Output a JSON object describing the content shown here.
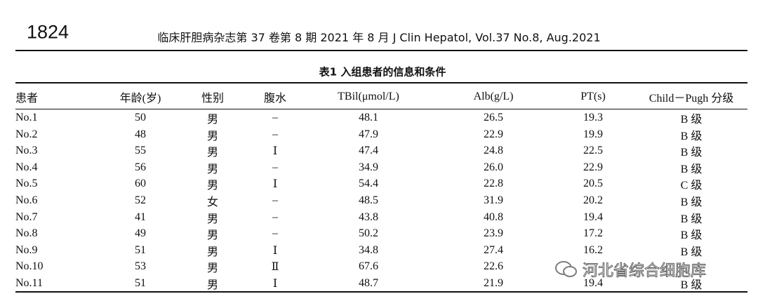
{
  "header": {
    "page_number": "1824",
    "journal": "临床肝胆病杂志第 37 卷第 8 期 2021 年 8 月   J Clin Hepatol, Vol.37 No.8, Aug.2021"
  },
  "table": {
    "caption": "表1   入组患者的信息和条件",
    "columns": [
      "患者",
      "年龄(岁)",
      "性别",
      "腹水",
      "TBil(μmol/L)",
      "Alb(g/L)",
      "PT(s)",
      "Child－Pugh 分级"
    ],
    "rows": [
      [
        "No.1",
        "50",
        "男",
        "–",
        "48.1",
        "26.5",
        "19.3",
        "B 级"
      ],
      [
        "No.2",
        "48",
        "男",
        "–",
        "47.9",
        "22.9",
        "19.9",
        "B 级"
      ],
      [
        "No.3",
        "55",
        "男",
        "Ⅰ",
        "47.4",
        "24.8",
        "22.5",
        "B 级"
      ],
      [
        "No.4",
        "56",
        "男",
        "–",
        "34.9",
        "26.0",
        "22.9",
        "B 级"
      ],
      [
        "No.5",
        "60",
        "男",
        "Ⅰ",
        "54.4",
        "22.8",
        "20.5",
        "C 级"
      ],
      [
        "No.6",
        "52",
        "女",
        "–",
        "48.5",
        "31.9",
        "20.2",
        "B 级"
      ],
      [
        "No.7",
        "41",
        "男",
        "–",
        "43.8",
        "40.8",
        "19.4",
        "B 级"
      ],
      [
        "No.8",
        "49",
        "男",
        "–",
        "50.2",
        "23.9",
        "17.2",
        "B 级"
      ],
      [
        "No.9",
        "51",
        "男",
        "Ⅰ",
        "34.8",
        "27.4",
        "16.2",
        "B 级"
      ],
      [
        "No.10",
        "53",
        "男",
        "Ⅱ",
        "67.6",
        "22.6",
        "",
        ""
      ],
      [
        "No.11",
        "51",
        "男",
        "Ⅰ",
        "48.7",
        "21.9",
        "19.4",
        "B 级"
      ]
    ]
  },
  "watermark": "河北省综合细胞库"
}
